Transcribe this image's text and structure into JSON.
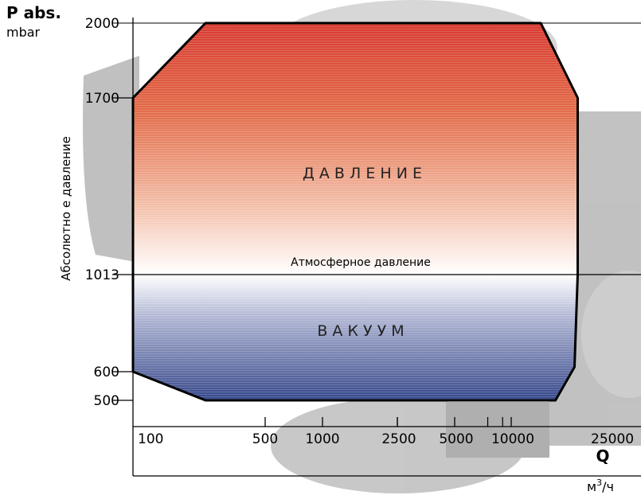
{
  "chart_data": {
    "type": "area",
    "y_title": "P abs.",
    "y_unit": "mbar",
    "ylabel": "Абсолютно е давление",
    "y_ticks": [
      2000,
      1700,
      1013,
      600,
      500
    ],
    "x_ticks": [
      "100",
      "500",
      "1000",
      "2500",
      "5000",
      "10000",
      "25000"
    ],
    "x_title": "Q",
    "x_unit": "м",
    "x_unit_sup": "3",
    "x_unit_suffix": "/ч",
    "region_pressure_label": "Д А В Л Е Н И Е",
    "region_vacuum_label": "В А К У У М",
    "atmospheric_label": "Атмосферное давление",
    "atmospheric_value": 1013,
    "envelope": [
      {
        "q": 100,
        "p": 1700
      },
      {
        "q": 220,
        "p": 2000
      },
      {
        "q": 12000,
        "p": 2000
      },
      {
        "q": 21000,
        "p": 1700
      },
      {
        "q": 21000,
        "p": 1013
      },
      {
        "q": 20000,
        "p": 620
      },
      {
        "q": 15000,
        "p": 500
      },
      {
        "q": 220,
        "p": 500
      },
      {
        "q": 100,
        "p": 600
      }
    ],
    "colors": {
      "pressure_top": "#d63a2f",
      "pressure_mid": "#e47a52",
      "vacuum_bottom": "#3a4a8c",
      "outline": "#000000"
    }
  }
}
